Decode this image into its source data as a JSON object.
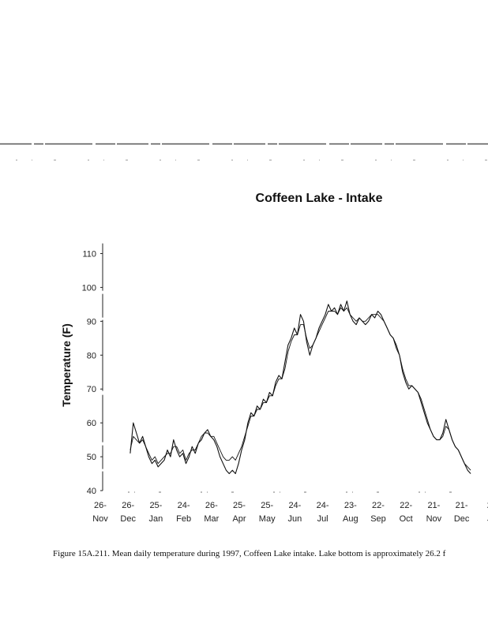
{
  "caption": "Figure 15A.211. Mean daily temperature during 1997, Coffeen Lake intake. Lake bottom is approximately 26.2 f",
  "chart_data": {
    "type": "line",
    "title": "Coffeen Lake - Intake",
    "xlabel": "",
    "ylabel": "Temperature (F)",
    "ylim": [
      40,
      115
    ],
    "yticks": [
      40,
      50,
      60,
      70,
      80,
      90,
      100,
      110
    ],
    "grid": false,
    "legend": "none",
    "x_tick_labels": [
      [
        "26-",
        "Nov"
      ],
      [
        "26-",
        "Dec"
      ],
      [
        "25-",
        "Jan"
      ],
      [
        "24-",
        "Feb"
      ],
      [
        "26-",
        "Mar"
      ],
      [
        "25-",
        "Apr"
      ],
      [
        "25-",
        "May"
      ],
      [
        "24-",
        "Jun"
      ],
      [
        "24-",
        "Jul"
      ],
      [
        "23-",
        "Aug"
      ],
      [
        "22-",
        "Sep"
      ],
      [
        "22-",
        "Oct"
      ],
      [
        "21-",
        "Nov"
      ],
      [
        "21-",
        "Dec"
      ],
      [
        "2",
        "J"
      ]
    ],
    "series": [
      {
        "values": [
          [
            1,
            51
          ],
          [
            2,
            60
          ],
          [
            4,
            54
          ],
          [
            5,
            56
          ],
          [
            7,
            50
          ],
          [
            8,
            48
          ],
          [
            9,
            49
          ],
          [
            10,
            47
          ],
          [
            12,
            49
          ],
          [
            13,
            52
          ],
          [
            14,
            50
          ],
          [
            15,
            55
          ],
          [
            16,
            52
          ],
          [
            17,
            50
          ],
          [
            18,
            51
          ],
          [
            19,
            48
          ],
          [
            20,
            50
          ],
          [
            21,
            53
          ],
          [
            22,
            51
          ],
          [
            23,
            54
          ],
          [
            24,
            55
          ],
          [
            25,
            57
          ],
          [
            26,
            58
          ],
          [
            27,
            56
          ],
          [
            28,
            55
          ],
          [
            29,
            53
          ],
          [
            30,
            50
          ],
          [
            31,
            48
          ],
          [
            32,
            46
          ],
          [
            33,
            45
          ],
          [
            34,
            46
          ],
          [
            35,
            45
          ],
          [
            36,
            48
          ],
          [
            37,
            52
          ],
          [
            38,
            55
          ],
          [
            39,
            60
          ],
          [
            40,
            63
          ],
          [
            41,
            62
          ],
          [
            42,
            65
          ],
          [
            43,
            64
          ],
          [
            44,
            67
          ],
          [
            45,
            66
          ],
          [
            46,
            69
          ],
          [
            47,
            68
          ],
          [
            48,
            72
          ],
          [
            49,
            74
          ],
          [
            50,
            73
          ],
          [
            51,
            78
          ],
          [
            52,
            83
          ],
          [
            53,
            85
          ],
          [
            54,
            88
          ],
          [
            55,
            86
          ],
          [
            56,
            92
          ],
          [
            57,
            90
          ],
          [
            58,
            84
          ],
          [
            59,
            80
          ],
          [
            60,
            83
          ],
          [
            61,
            85
          ],
          [
            62,
            88
          ],
          [
            63,
            90
          ],
          [
            64,
            92
          ],
          [
            65,
            95
          ],
          [
            66,
            93
          ],
          [
            67,
            94
          ],
          [
            68,
            92
          ],
          [
            69,
            95
          ],
          [
            70,
            93
          ],
          [
            71,
            96
          ],
          [
            72,
            92
          ],
          [
            73,
            90
          ],
          [
            74,
            89
          ],
          [
            75,
            91
          ],
          [
            76,
            90
          ],
          [
            77,
            89
          ],
          [
            78,
            90
          ],
          [
            79,
            92
          ],
          [
            80,
            91
          ],
          [
            81,
            93
          ],
          [
            82,
            92
          ],
          [
            83,
            90
          ],
          [
            84,
            88
          ],
          [
            85,
            86
          ],
          [
            86,
            85
          ],
          [
            87,
            82
          ],
          [
            88,
            80
          ],
          [
            89,
            75
          ],
          [
            90,
            72
          ],
          [
            91,
            70
          ],
          [
            92,
            71
          ],
          [
            93,
            70
          ],
          [
            94,
            69
          ],
          [
            95,
            66
          ],
          [
            96,
            63
          ],
          [
            97,
            60
          ],
          [
            98,
            58
          ],
          [
            99,
            56
          ],
          [
            100,
            55
          ],
          [
            101,
            55
          ],
          [
            102,
            57
          ],
          [
            103,
            61
          ],
          [
            104,
            58
          ],
          [
            105,
            55
          ],
          [
            106,
            53
          ],
          [
            107,
            52
          ],
          [
            108,
            50
          ],
          [
            109,
            48
          ],
          [
            110,
            46
          ],
          [
            111,
            45
          ]
        ]
      },
      {
        "values": [
          [
            1,
            52
          ],
          [
            2,
            56
          ],
          [
            4,
            54
          ],
          [
            5,
            55
          ],
          [
            7,
            51
          ],
          [
            8,
            49
          ],
          [
            9,
            50
          ],
          [
            10,
            48
          ],
          [
            12,
            50
          ],
          [
            13,
            51
          ],
          [
            14,
            51
          ],
          [
            15,
            53
          ],
          [
            16,
            53
          ],
          [
            17,
            51
          ],
          [
            18,
            52
          ],
          [
            19,
            49
          ],
          [
            20,
            51
          ],
          [
            21,
            52
          ],
          [
            22,
            52
          ],
          [
            23,
            54
          ],
          [
            24,
            56
          ],
          [
            25,
            57
          ],
          [
            26,
            57
          ],
          [
            27,
            56
          ],
          [
            28,
            56
          ],
          [
            29,
            54
          ],
          [
            30,
            52
          ],
          [
            31,
            50
          ],
          [
            32,
            49
          ],
          [
            33,
            49
          ],
          [
            34,
            50
          ],
          [
            35,
            49
          ],
          [
            36,
            51
          ],
          [
            37,
            53
          ],
          [
            38,
            56
          ],
          [
            39,
            59
          ],
          [
            40,
            62
          ],
          [
            41,
            62
          ],
          [
            42,
            64
          ],
          [
            43,
            64
          ],
          [
            44,
            66
          ],
          [
            45,
            66
          ],
          [
            46,
            68
          ],
          [
            47,
            68
          ],
          [
            48,
            71
          ],
          [
            49,
            73
          ],
          [
            50,
            73
          ],
          [
            51,
            76
          ],
          [
            52,
            81
          ],
          [
            53,
            84
          ],
          [
            54,
            86
          ],
          [
            55,
            86
          ],
          [
            56,
            89
          ],
          [
            57,
            89
          ],
          [
            58,
            85
          ],
          [
            59,
            82
          ],
          [
            60,
            83
          ],
          [
            61,
            85
          ],
          [
            62,
            87
          ],
          [
            63,
            89
          ],
          [
            64,
            91
          ],
          [
            65,
            93
          ],
          [
            66,
            93
          ],
          [
            67,
            93
          ],
          [
            68,
            92
          ],
          [
            69,
            94
          ],
          [
            70,
            93
          ],
          [
            71,
            94
          ],
          [
            72,
            92
          ],
          [
            73,
            91
          ],
          [
            74,
            90
          ],
          [
            75,
            91
          ],
          [
            76,
            90
          ],
          [
            77,
            90
          ],
          [
            78,
            91
          ],
          [
            79,
            92
          ],
          [
            80,
            92
          ],
          [
            81,
            92
          ],
          [
            82,
            91
          ],
          [
            83,
            90
          ],
          [
            84,
            88
          ],
          [
            85,
            86
          ],
          [
            86,
            85
          ],
          [
            87,
            83
          ],
          [
            88,
            80
          ],
          [
            89,
            76
          ],
          [
            90,
            73
          ],
          [
            91,
            71
          ],
          [
            92,
            71
          ],
          [
            93,
            70
          ],
          [
            94,
            69
          ],
          [
            95,
            67
          ],
          [
            96,
            64
          ],
          [
            97,
            61
          ],
          [
            98,
            58
          ],
          [
            99,
            56
          ],
          [
            100,
            55
          ],
          [
            101,
            55
          ],
          [
            102,
            56
          ],
          [
            103,
            59
          ],
          [
            104,
            58
          ],
          [
            105,
            55
          ],
          [
            106,
            53
          ],
          [
            107,
            52
          ],
          [
            108,
            50
          ],
          [
            109,
            48
          ],
          [
            110,
            47
          ],
          [
            111,
            46
          ]
        ]
      }
    ],
    "x_domain": [
      0,
      112
    ],
    "line_color": "#111111"
  }
}
